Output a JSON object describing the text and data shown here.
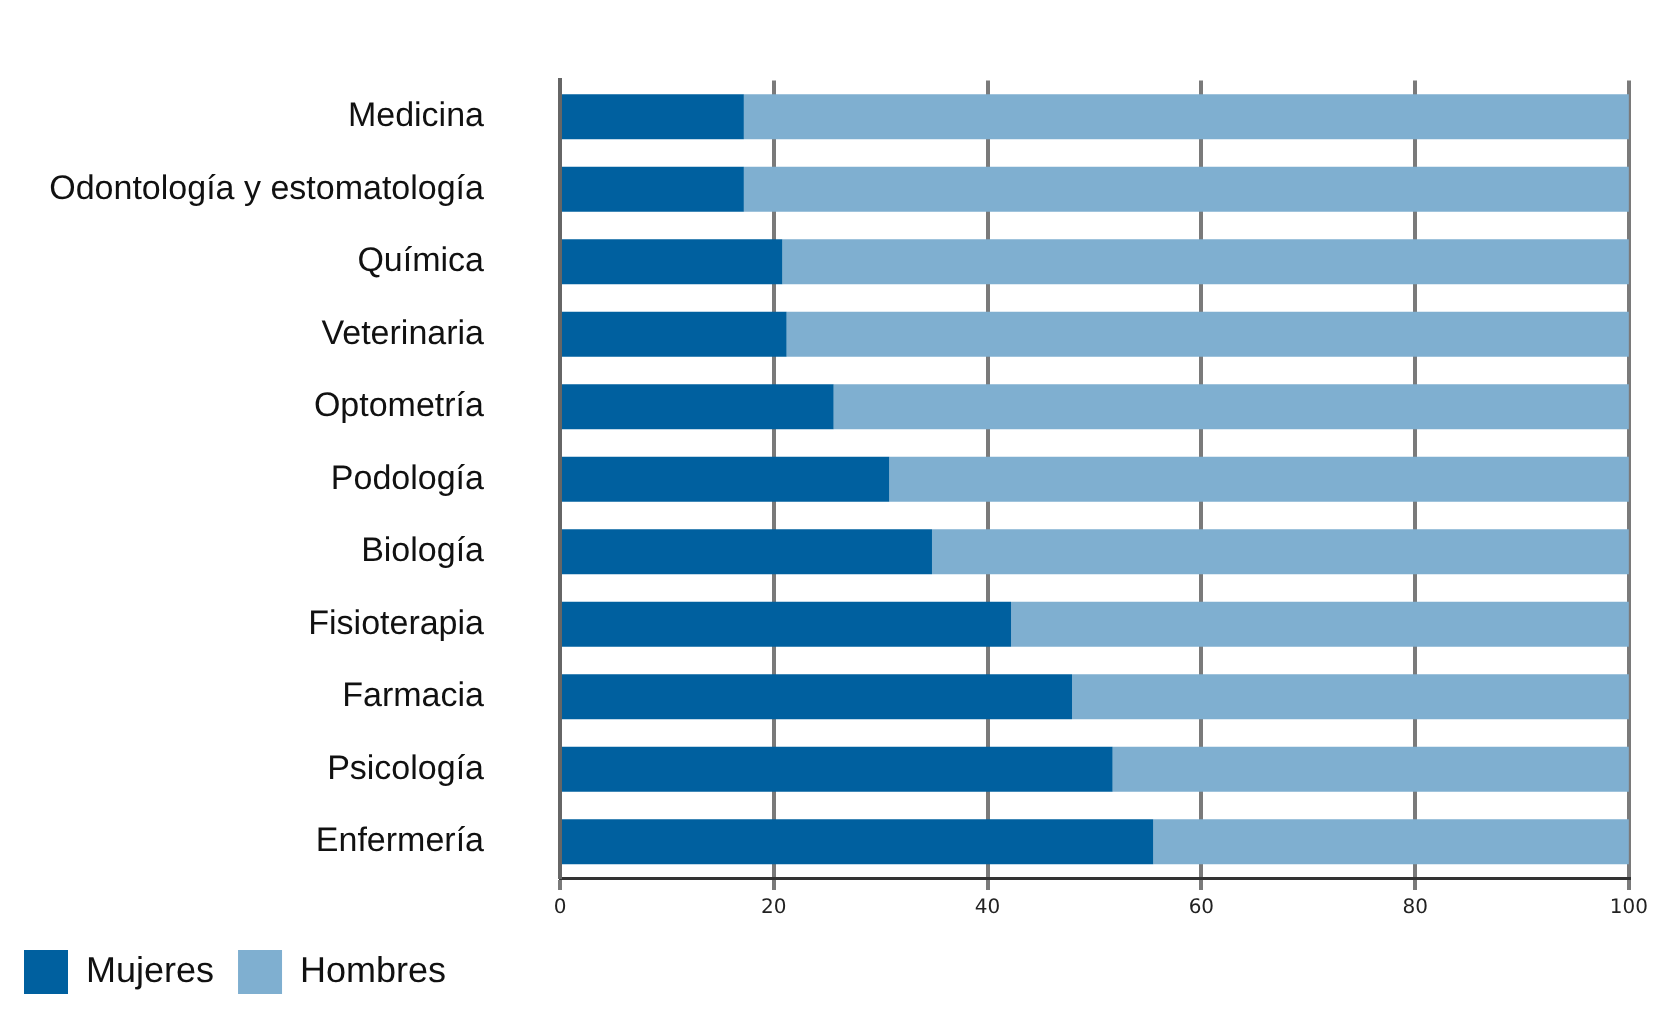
{
  "chart_data": {
    "type": "bar",
    "orientation": "horizontal",
    "stacked": true,
    "categories": [
      "Medicina",
      "Odontología y estomatología",
      "Química",
      "Veterinaria",
      "Optometría",
      "Podología",
      "Biología",
      "Fisioterapia",
      "Farmacia",
      "Psicología",
      "Enfermería"
    ],
    "series": [
      {
        "name": "Mujeres",
        "color": "#00609f",
        "values": [
          17.2,
          17.2,
          20.8,
          21.2,
          25.6,
          30.8,
          34.8,
          42.2,
          47.9,
          51.7,
          55.5
        ]
      },
      {
        "name": "Hombres",
        "color": "#7fafd0",
        "values": [
          82.8,
          82.8,
          79.2,
          78.8,
          74.4,
          69.2,
          65.2,
          57.8,
          52.1,
          48.3,
          44.5
        ]
      }
    ],
    "xlim": [
      0,
      100
    ],
    "xticks": [
      0,
      20,
      40,
      60,
      80,
      100
    ],
    "grid": "x",
    "legend": "bottom left"
  }
}
